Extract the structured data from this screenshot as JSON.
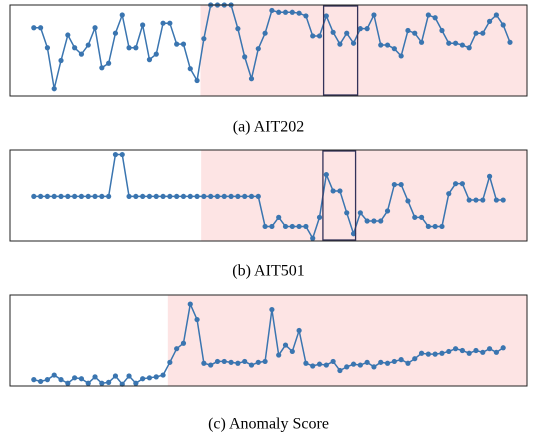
{
  "chart_data": [
    {
      "type": "line",
      "title": "(a) AIT202",
      "color": "#3a75b0",
      "values": [
        75,
        75,
        53,
        8,
        39,
        67,
        53,
        46,
        56,
        75,
        31,
        36,
        69,
        89,
        53,
        53,
        78,
        40,
        46,
        80,
        80,
        57,
        57,
        30,
        17,
        63,
        100,
        100,
        100,
        100,
        74,
        43,
        19,
        52,
        69,
        94,
        92,
        92,
        92,
        91,
        88,
        66,
        66,
        88,
        70,
        57,
        69,
        58,
        74,
        74,
        89,
        56,
        56,
        52,
        44,
        72,
        69,
        59,
        89,
        86,
        72,
        58,
        58,
        56,
        53,
        69,
        69,
        82,
        89,
        78,
        59
      ],
      "xlim": [
        -3.5,
        72.5
      ],
      "ylim": [
        0,
        100
      ],
      "highlight": {
        "from": 24.5,
        "color": "#fde4e4"
      },
      "box": {
        "from": 42.6,
        "to": 47.6,
        "color": "#33335a"
      }
    },
    {
      "type": "line",
      "title": "(b) AIT501",
      "color": "#3a75b0",
      "values": [
        49,
        49,
        49,
        49,
        49,
        49,
        49,
        49,
        49,
        49,
        49,
        49,
        95,
        95,
        49,
        49,
        49,
        49,
        49,
        49,
        49,
        49,
        49,
        49,
        49,
        49,
        49,
        49,
        49,
        49,
        49,
        49,
        49,
        49,
        16,
        16,
        26,
        16,
        16,
        16,
        16,
        3,
        26,
        73,
        55,
        55,
        31,
        8,
        31,
        22,
        22,
        22,
        33,
        62,
        62,
        44,
        26,
        26,
        16,
        16,
        16,
        52,
        63,
        63,
        45,
        45,
        45,
        71,
        45,
        45
      ],
      "xlim": [
        -3.5,
        72.5
      ],
      "ylim": [
        0,
        100
      ],
      "highlight": {
        "from": 24.6,
        "color": "#fde4e4"
      },
      "box": {
        "from": 42.5,
        "to": 47.3,
        "color": "#33335a"
      }
    },
    {
      "type": "line",
      "title": "(c) Anomaly Score",
      "color": "#3a75b0",
      "values": [
        7,
        5,
        7,
        12,
        7,
        3,
        9,
        8,
        3,
        10,
        3,
        4,
        11,
        2,
        11,
        3,
        8,
        9,
        10,
        12,
        26,
        41,
        47,
        90,
        73,
        25,
        23,
        27,
        27,
        26,
        25,
        27,
        23,
        26,
        27,
        84,
        34,
        45,
        38,
        61,
        25,
        22,
        24,
        23,
        27,
        17,
        21,
        24,
        23,
        26,
        21,
        26,
        25,
        27,
        29,
        25,
        30,
        36,
        35,
        35,
        36,
        38,
        41,
        39,
        36,
        39,
        37,
        41,
        37,
        42
      ],
      "xlim": [
        -3.5,
        72.5
      ],
      "ylim": [
        0,
        100
      ],
      "highlight": {
        "from": 19.7,
        "color": "#fde4e4"
      }
    }
  ]
}
